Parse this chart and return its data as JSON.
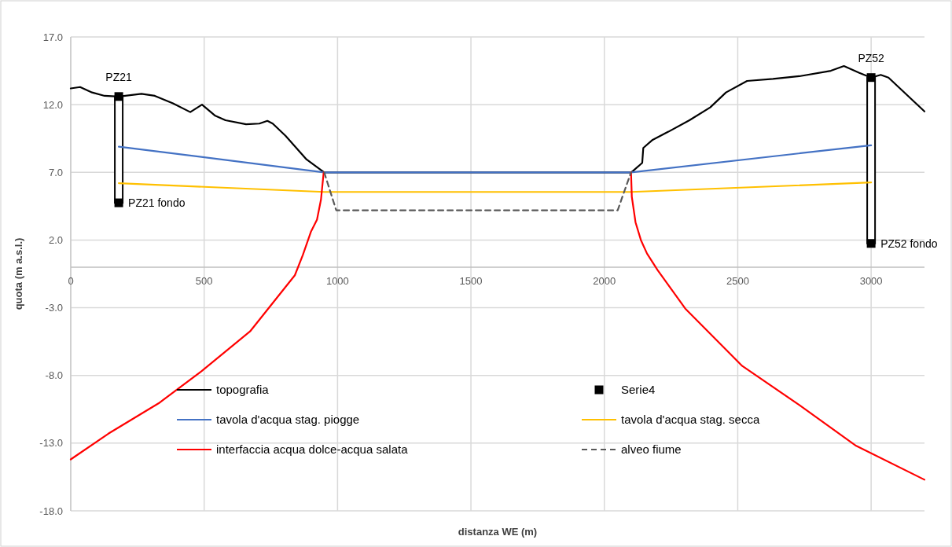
{
  "chart_data": {
    "type": "line",
    "xlabel": "distanza WE (m)",
    "ylabel": "quota (m a.s.l.)",
    "xlim": [
      0,
      3200
    ],
    "ylim": [
      -18,
      17
    ],
    "xticks": [
      0,
      500,
      1000,
      1500,
      2000,
      2500,
      3000
    ],
    "yticks": [
      {
        "value": 17,
        "label": "17.0"
      },
      {
        "value": 12,
        "label": "12.0"
      },
      {
        "value": 7,
        "label": "7.0"
      },
      {
        "value": 2,
        "label": "2.0"
      },
      {
        "value": -3,
        "label": "-3.0"
      },
      {
        "value": -8,
        "label": "-8.0"
      },
      {
        "value": -13,
        "label": "-13.0"
      },
      {
        "value": -18,
        "label": "-18.0"
      }
    ],
    "grid": true,
    "legend": "bottom",
    "series": [
      {
        "name": "topografia",
        "color": "#000000",
        "x": [
          0,
          35,
          80,
          127,
          180,
          265,
          315,
          383,
          448,
          492,
          540,
          580,
          657,
          707,
          737,
          757,
          805,
          884,
          950,
          2100,
          2107,
          2142,
          2146,
          2181,
          2240,
          2319,
          2397,
          2456,
          2535,
          2632,
          2731,
          2849,
          2898,
          2956,
          3000,
          3036,
          3065,
          3200
        ],
        "values": [
          13.2,
          13.3,
          12.9,
          12.65,
          12.6,
          12.8,
          12.65,
          12.1,
          11.45,
          12.0,
          11.2,
          10.85,
          10.55,
          10.6,
          10.8,
          10.6,
          9.7,
          7.95,
          7.0,
          7.0,
          7.1,
          7.7,
          8.8,
          9.4,
          10.0,
          10.85,
          11.8,
          12.9,
          13.75,
          13.9,
          14.1,
          14.5,
          14.85,
          14.35,
          14.0,
          14.2,
          14.0,
          11.5
        ]
      },
      {
        "name": "Serie4",
        "type": "scatter",
        "marker": "square",
        "color": "#000000",
        "x": [
          180,
          180,
          3000,
          3000
        ],
        "values": [
          12.6,
          4.75,
          14.0,
          1.75
        ]
      },
      {
        "name": "tavola d'acqua stag. piogge",
        "color": "#4472c4",
        "x": [
          180,
          950,
          2100,
          3000
        ],
        "values": [
          8.9,
          7.0,
          7.0,
          9.0
        ]
      },
      {
        "name": "tavola d'acqua stag. secca",
        "color": "#ffc000",
        "x": [
          180,
          950,
          2100,
          3000
        ],
        "values": [
          6.2,
          5.55,
          5.55,
          6.25
        ]
      },
      {
        "name": "interfaccia acqua dolce-acqua salata",
        "color": "#ff0000",
        "x": [
          0,
          141,
          330,
          489,
          672,
          840,
          870,
          900,
          923,
          938,
          948,
          null,
          2100,
          2103,
          2117,
          2137,
          2160,
          2199,
          2305,
          2517,
          2732,
          2944,
          3200
        ],
        "values": [
          -14.2,
          -12.3,
          -10.05,
          -7.7,
          -4.75,
          -0.6,
          0.9,
          2.6,
          3.5,
          5.0,
          7.0,
          null,
          7.0,
          5.2,
          3.3,
          2.0,
          1.0,
          -0.2,
          -3.1,
          -7.3,
          -10.2,
          -13.2,
          -15.7
        ]
      },
      {
        "name": "alveo fiume",
        "color": "#595959",
        "line_style": "dashed",
        "x": [
          950,
          995,
          2050,
          2100
        ],
        "values": [
          7.0,
          4.2,
          4.2,
          7.0
        ]
      }
    ],
    "annotations": [
      "PZ21",
      "PZ21 fondo",
      "PZ52",
      "PZ52 fondo"
    ]
  }
}
